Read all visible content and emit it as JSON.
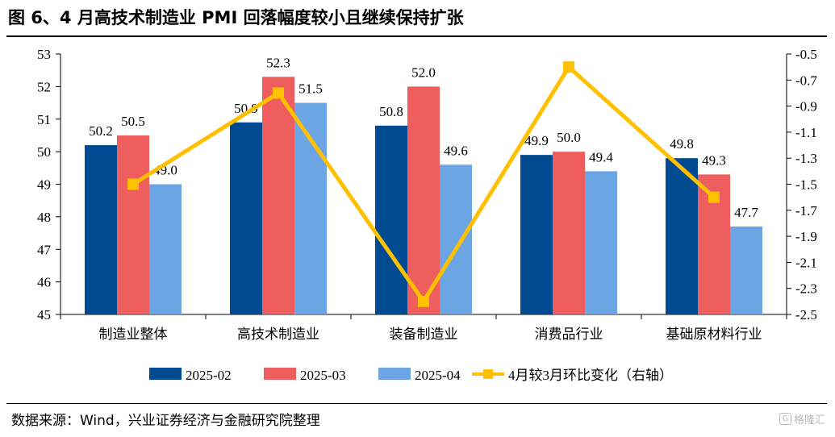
{
  "title": "图 6、4 月高技术制造业 PMI 回落幅度较小且继续保持扩张",
  "source": "数据来源：Wind，兴业证券经济与金融研究院整理",
  "watermark": "格隆汇",
  "chart_data": {
    "type": "bar",
    "categories": [
      "制造业整体",
      "高技术制造业",
      "装备制造业",
      "消费品行业",
      "基础原材料行业"
    ],
    "series": [
      {
        "name": "2025-02",
        "type": "bar",
        "axis": "left",
        "color": "#004A91",
        "values": [
          50.2,
          50.9,
          50.8,
          49.9,
          49.8
        ]
      },
      {
        "name": "2025-03",
        "type": "bar",
        "axis": "left",
        "color": "#EE5E5E",
        "values": [
          50.5,
          52.3,
          52.0,
          50.0,
          49.3
        ]
      },
      {
        "name": "2025-04",
        "type": "bar",
        "axis": "left",
        "color": "#6CA5E3",
        "values": [
          49.0,
          51.5,
          49.6,
          49.4,
          47.7
        ]
      },
      {
        "name": "4月较3月环比变化（右轴）",
        "type": "line",
        "axis": "right",
        "color": "#FFC000",
        "values": [
          -1.5,
          -0.8,
          -2.4,
          -0.6,
          -1.6
        ]
      }
    ],
    "ylim": [
      45,
      53
    ],
    "yticks": [
      "45",
      "46",
      "47",
      "48",
      "49",
      "50",
      "51",
      "52",
      "53"
    ],
    "y2lim": [
      -2.5,
      -0.5
    ],
    "y2ticks": [
      "-0.5",
      "-0.7",
      "-0.9",
      "-1.1",
      "-1.3",
      "-1.5",
      "-1.7",
      "-1.9",
      "-2.1",
      "-2.3",
      "-2.5"
    ],
    "bar_labels": [
      [
        "50.2",
        "50.9",
        "50.8",
        "49.9",
        "49.8"
      ],
      [
        "50.5",
        "52.3",
        "52.0",
        "50.0",
        "49.3"
      ],
      [
        "49.0",
        "51.5",
        "49.6",
        "49.4",
        "47.7"
      ]
    ],
    "grid": false,
    "legend": "bottom"
  }
}
